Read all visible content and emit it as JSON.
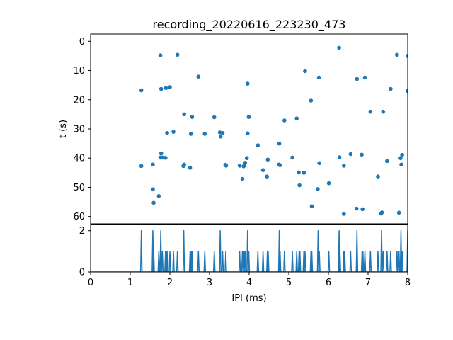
{
  "chart_data": [
    {
      "type": "scatter",
      "title": "recording_20220616_223230_473",
      "xlabel": "",
      "ylabel": "t (s)",
      "xlim": [
        0,
        8
      ],
      "ylim": [
        62.5,
        -2.5
      ],
      "y_inverted": true,
      "yticks": [
        0,
        10,
        20,
        30,
        40,
        50,
        60
      ],
      "color": "#1f77b4",
      "grid": false,
      "points": [
        {
          "x": 1.28,
          "y": 16.8
        },
        {
          "x": 1.28,
          "y": 42.7
        },
        {
          "x": 1.57,
          "y": 42.2
        },
        {
          "x": 1.57,
          "y": 50.7
        },
        {
          "x": 1.59,
          "y": 55.3
        },
        {
          "x": 1.72,
          "y": 53.0
        },
        {
          "x": 1.76,
          "y": 4.8
        },
        {
          "x": 1.76,
          "y": 39.8
        },
        {
          "x": 1.78,
          "y": 38.4
        },
        {
          "x": 1.78,
          "y": 16.3
        },
        {
          "x": 1.82,
          "y": 39.8
        },
        {
          "x": 1.89,
          "y": 39.9
        },
        {
          "x": 1.9,
          "y": 16.0
        },
        {
          "x": 1.93,
          "y": 31.4
        },
        {
          "x": 2.0,
          "y": 15.7
        },
        {
          "x": 2.09,
          "y": 31.0
        },
        {
          "x": 2.19,
          "y": 4.6
        },
        {
          "x": 2.34,
          "y": 42.7
        },
        {
          "x": 2.36,
          "y": 42.2
        },
        {
          "x": 2.36,
          "y": 25.0
        },
        {
          "x": 2.51,
          "y": 43.3
        },
        {
          "x": 2.53,
          "y": 31.7
        },
        {
          "x": 2.56,
          "y": 25.9
        },
        {
          "x": 2.72,
          "y": 12.1
        },
        {
          "x": 2.88,
          "y": 31.7
        },
        {
          "x": 3.12,
          "y": 26.0
        },
        {
          "x": 3.26,
          "y": 31.2
        },
        {
          "x": 3.28,
          "y": 32.6
        },
        {
          "x": 3.33,
          "y": 31.4
        },
        {
          "x": 3.4,
          "y": 42.3
        },
        {
          "x": 3.42,
          "y": 42.6
        },
        {
          "x": 3.76,
          "y": 42.6
        },
        {
          "x": 3.83,
          "y": 47.1
        },
        {
          "x": 3.86,
          "y": 42.8
        },
        {
          "x": 3.88,
          "y": 42.5
        },
        {
          "x": 3.9,
          "y": 41.6
        },
        {
          "x": 3.94,
          "y": 40.0
        },
        {
          "x": 3.96,
          "y": 31.5
        },
        {
          "x": 3.96,
          "y": 14.5
        },
        {
          "x": 3.99,
          "y": 25.9
        },
        {
          "x": 4.22,
          "y": 35.6
        },
        {
          "x": 4.35,
          "y": 44.1
        },
        {
          "x": 4.45,
          "y": 46.3
        },
        {
          "x": 4.47,
          "y": 40.5
        },
        {
          "x": 4.75,
          "y": 42.2
        },
        {
          "x": 4.76,
          "y": 35.0
        },
        {
          "x": 4.78,
          "y": 42.4
        },
        {
          "x": 4.89,
          "y": 27.1
        },
        {
          "x": 5.09,
          "y": 39.8
        },
        {
          "x": 5.2,
          "y": 26.4
        },
        {
          "x": 5.25,
          "y": 44.9
        },
        {
          "x": 5.27,
          "y": 49.3
        },
        {
          "x": 5.38,
          "y": 45.0
        },
        {
          "x": 5.41,
          "y": 10.2
        },
        {
          "x": 5.56,
          "y": 20.3
        },
        {
          "x": 5.58,
          "y": 56.5
        },
        {
          "x": 5.73,
          "y": 50.6
        },
        {
          "x": 5.76,
          "y": 12.4
        },
        {
          "x": 5.77,
          "y": 41.7
        },
        {
          "x": 6.01,
          "y": 48.6
        },
        {
          "x": 6.27,
          "y": 2.2
        },
        {
          "x": 6.28,
          "y": 39.7
        },
        {
          "x": 6.39,
          "y": 59.1
        },
        {
          "x": 6.39,
          "y": 42.6
        },
        {
          "x": 6.56,
          "y": 38.6
        },
        {
          "x": 6.71,
          "y": 57.3
        },
        {
          "x": 6.72,
          "y": 12.9
        },
        {
          "x": 6.84,
          "y": 38.8
        },
        {
          "x": 6.86,
          "y": 57.5
        },
        {
          "x": 6.92,
          "y": 12.4
        },
        {
          "x": 7.06,
          "y": 24.1
        },
        {
          "x": 7.25,
          "y": 46.3
        },
        {
          "x": 7.33,
          "y": 59.0
        },
        {
          "x": 7.35,
          "y": 58.6
        },
        {
          "x": 7.38,
          "y": 24.1
        },
        {
          "x": 7.48,
          "y": 41.0
        },
        {
          "x": 7.57,
          "y": 16.3
        },
        {
          "x": 7.73,
          "y": 4.6
        },
        {
          "x": 7.78,
          "y": 58.7
        },
        {
          "x": 7.82,
          "y": 40.0
        },
        {
          "x": 7.84,
          "y": 42.2
        },
        {
          "x": 7.86,
          "y": 38.9
        },
        {
          "x": 8.0,
          "y": 5.0
        },
        {
          "x": 8.0,
          "y": 17.0
        }
      ]
    },
    {
      "type": "line",
      "title": "",
      "xlabel": "IPI (ms)",
      "ylabel": "",
      "xlim": [
        0,
        8
      ],
      "ylim": [
        0,
        2.3
      ],
      "xticks": [
        0,
        1,
        2,
        3,
        4,
        5,
        6,
        7,
        8
      ],
      "yticks": [
        0,
        2
      ],
      "color": "#1f77b4",
      "grid": false,
      "spikes": [
        {
          "x": 1.28,
          "y": 2
        },
        {
          "x": 1.57,
          "y": 2
        },
        {
          "x": 1.59,
          "y": 1
        },
        {
          "x": 1.72,
          "y": 1
        },
        {
          "x": 1.77,
          "y": 2
        },
        {
          "x": 1.81,
          "y": 1
        },
        {
          "x": 1.89,
          "y": 1
        },
        {
          "x": 1.91,
          "y": 1
        },
        {
          "x": 1.93,
          "y": 1
        },
        {
          "x": 2.0,
          "y": 1
        },
        {
          "x": 2.09,
          "y": 1
        },
        {
          "x": 2.19,
          "y": 1
        },
        {
          "x": 2.35,
          "y": 2
        },
        {
          "x": 2.51,
          "y": 1
        },
        {
          "x": 2.54,
          "y": 1
        },
        {
          "x": 2.56,
          "y": 1
        },
        {
          "x": 2.72,
          "y": 1
        },
        {
          "x": 2.88,
          "y": 1
        },
        {
          "x": 3.12,
          "y": 1
        },
        {
          "x": 3.27,
          "y": 2
        },
        {
          "x": 3.33,
          "y": 1
        },
        {
          "x": 3.41,
          "y": 1
        },
        {
          "x": 3.76,
          "y": 1
        },
        {
          "x": 3.83,
          "y": 1
        },
        {
          "x": 3.87,
          "y": 1
        },
        {
          "x": 3.9,
          "y": 1
        },
        {
          "x": 3.96,
          "y": 2
        },
        {
          "x": 3.99,
          "y": 1
        },
        {
          "x": 4.22,
          "y": 1
        },
        {
          "x": 4.35,
          "y": 1
        },
        {
          "x": 4.46,
          "y": 1
        },
        {
          "x": 4.48,
          "y": 1
        },
        {
          "x": 4.76,
          "y": 2
        },
        {
          "x": 4.78,
          "y": 1
        },
        {
          "x": 4.89,
          "y": 1
        },
        {
          "x": 5.09,
          "y": 1
        },
        {
          "x": 5.2,
          "y": 1
        },
        {
          "x": 5.26,
          "y": 1
        },
        {
          "x": 5.28,
          "y": 1
        },
        {
          "x": 5.38,
          "y": 1
        },
        {
          "x": 5.41,
          "y": 1
        },
        {
          "x": 5.56,
          "y": 1
        },
        {
          "x": 5.58,
          "y": 1
        },
        {
          "x": 5.74,
          "y": 2
        },
        {
          "x": 5.77,
          "y": 1
        },
        {
          "x": 6.01,
          "y": 1
        },
        {
          "x": 6.27,
          "y": 2
        },
        {
          "x": 6.29,
          "y": 1
        },
        {
          "x": 6.39,
          "y": 1
        },
        {
          "x": 6.41,
          "y": 1
        },
        {
          "x": 6.56,
          "y": 1
        },
        {
          "x": 6.72,
          "y": 2
        },
        {
          "x": 6.85,
          "y": 1
        },
        {
          "x": 6.87,
          "y": 1
        },
        {
          "x": 6.92,
          "y": 1
        },
        {
          "x": 7.06,
          "y": 1
        },
        {
          "x": 7.25,
          "y": 1
        },
        {
          "x": 7.34,
          "y": 2
        },
        {
          "x": 7.38,
          "y": 1
        },
        {
          "x": 7.48,
          "y": 1
        },
        {
          "x": 7.57,
          "y": 1
        },
        {
          "x": 7.73,
          "y": 1
        },
        {
          "x": 7.78,
          "y": 1
        },
        {
          "x": 7.83,
          "y": 2
        },
        {
          "x": 7.86,
          "y": 1
        },
        {
          "x": 8.0,
          "y": 2
        }
      ]
    }
  ]
}
